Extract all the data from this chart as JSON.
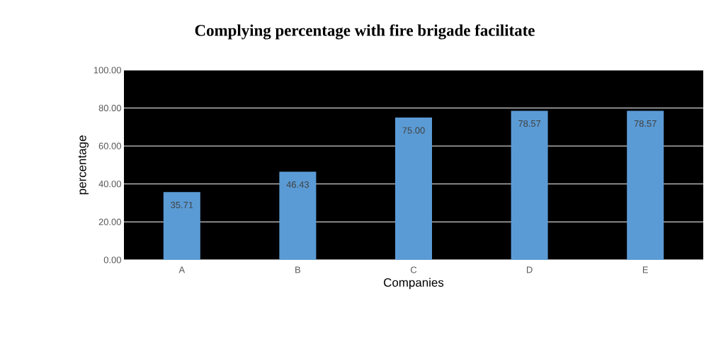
{
  "chart_data": {
    "type": "bar",
    "title": "Complying percentage with fire brigade facilitate",
    "xlabel": "Companies",
    "ylabel": "percentage",
    "categories": [
      "A",
      "B",
      "C",
      "D",
      "E"
    ],
    "values": [
      35.71,
      46.43,
      75.0,
      78.57,
      78.57
    ],
    "value_labels": [
      "35.71",
      "46.43",
      "75.00",
      "78.57",
      "78.57"
    ],
    "color": "#5b9bd5",
    "ylim": [
      0,
      100
    ],
    "yticks": [
      {
        "value": 0,
        "label": "0.00"
      },
      {
        "value": 20,
        "label": "20.00"
      },
      {
        "value": 40,
        "label": "40.00"
      },
      {
        "value": 60,
        "label": "60.00"
      },
      {
        "value": 80,
        "label": "80.00"
      },
      {
        "value": 100,
        "label": "100.00"
      }
    ],
    "grid": "y"
  }
}
